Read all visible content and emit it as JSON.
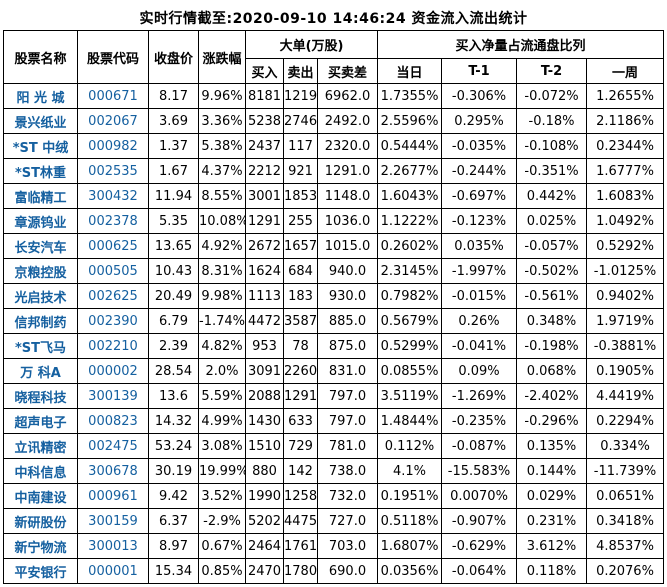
{
  "title": "实时行情截至:2020-09-10 14:46:24 资金流入流出统计",
  "colors": {
    "link_blue": "#1560a0",
    "text": "#000000",
    "border": "#000000",
    "background": "#ffffff"
  },
  "table": {
    "group_headers": {
      "big_orders": "大单(万股)",
      "net_buy_ratio": "买入净量占流通盘比列"
    },
    "headers": {
      "name": "股票名称",
      "code": "股票代码",
      "close": "收盘价",
      "change": "涨跌幅",
      "buy": "买入",
      "sell": "卖出",
      "diff": "买卖差",
      "today": "当日",
      "t1": "T-1",
      "t2": "T-2",
      "week": "一周"
    },
    "rows": [
      [
        "阳 光 城",
        "000671",
        "8.17",
        "9.96%",
        "8181",
        "1219",
        "6962.0",
        "1.7355%",
        "-0.306%",
        "-0.072%",
        "1.2655%"
      ],
      [
        "景兴纸业",
        "002067",
        "3.69",
        "3.36%",
        "5238",
        "2746",
        "2492.0",
        "2.5596%",
        "0.295%",
        "-0.18%",
        "2.1186%"
      ],
      [
        "*ST 中绒",
        "000982",
        "1.37",
        "5.38%",
        "2437",
        "117",
        "2320.0",
        "0.5444%",
        "-0.035%",
        "-0.108%",
        "0.2344%"
      ],
      [
        "*ST林重",
        "002535",
        "1.67",
        "4.37%",
        "2212",
        "921",
        "1291.0",
        "2.2677%",
        "-0.244%",
        "-0.351%",
        "1.6777%"
      ],
      [
        "富临精工",
        "300432",
        "11.94",
        "8.55%",
        "3001",
        "1853",
        "1148.0",
        "1.6043%",
        "-0.697%",
        "0.442%",
        "1.6083%"
      ],
      [
        "章源钨业",
        "002378",
        "5.35",
        "10.08%",
        "1291",
        "255",
        "1036.0",
        "1.1222%",
        "-0.123%",
        "0.025%",
        "1.0492%"
      ],
      [
        "长安汽车",
        "000625",
        "13.65",
        "4.92%",
        "2672",
        "1657",
        "1015.0",
        "0.2602%",
        "0.035%",
        "-0.057%",
        "0.5292%"
      ],
      [
        "京粮控股",
        "000505",
        "10.43",
        "8.31%",
        "1624",
        "684",
        "940.0",
        "2.3145%",
        "-1.997%",
        "-0.502%",
        "-1.0125%"
      ],
      [
        "光启技术",
        "002625",
        "20.49",
        "9.98%",
        "1113",
        "183",
        "930.0",
        "0.7982%",
        "-0.015%",
        "-0.561%",
        "0.9402%"
      ],
      [
        "信邦制药",
        "002390",
        "6.79",
        "-1.74%",
        "4472",
        "3587",
        "885.0",
        "0.5679%",
        "0.26%",
        "0.348%",
        "1.9719%"
      ],
      [
        "*ST飞马",
        "002210",
        "2.39",
        "4.82%",
        "953",
        "78",
        "875.0",
        "0.5299%",
        "-0.041%",
        "-0.198%",
        "-0.3881%"
      ],
      [
        "万 科A",
        "000002",
        "28.54",
        "2.0%",
        "3091",
        "2260",
        "831.0",
        "0.0855%",
        "0.09%",
        "0.068%",
        "0.1905%"
      ],
      [
        "晓程科技",
        "300139",
        "13.6",
        "5.59%",
        "2088",
        "1291",
        "797.0",
        "3.5119%",
        "-1.269%",
        "-2.402%",
        "4.4419%"
      ],
      [
        "超声电子",
        "000823",
        "14.32",
        "4.99%",
        "1430",
        "633",
        "797.0",
        "1.4844%",
        "-0.235%",
        "-0.296%",
        "0.2294%"
      ],
      [
        "立讯精密",
        "002475",
        "53.24",
        "3.08%",
        "1510",
        "729",
        "781.0",
        "0.112%",
        "-0.087%",
        "0.135%",
        "0.334%"
      ],
      [
        "中科信息",
        "300678",
        "30.19",
        "19.99%",
        "880",
        "142",
        "738.0",
        "4.1%",
        "-15.583%",
        "0.144%",
        "-11.739%"
      ],
      [
        "中南建设",
        "000961",
        "9.42",
        "3.52%",
        "1990",
        "1258",
        "732.0",
        "0.1951%",
        "0.0070%",
        "0.029%",
        "0.0651%"
      ],
      [
        "新研股份",
        "300159",
        "6.37",
        "-2.9%",
        "5202",
        "4475",
        "727.0",
        "0.5118%",
        "-0.907%",
        "0.231%",
        "0.3418%"
      ],
      [
        "新宁物流",
        "300013",
        "8.97",
        "0.67%",
        "2464",
        "1761",
        "703.0",
        "1.6807%",
        "-0.629%",
        "3.612%",
        "4.8537%"
      ],
      [
        "平安银行",
        "000001",
        "15.34",
        "0.85%",
        "2470",
        "1780",
        "690.0",
        "0.0356%",
        "-0.064%",
        "0.118%",
        "0.2076%"
      ]
    ]
  }
}
